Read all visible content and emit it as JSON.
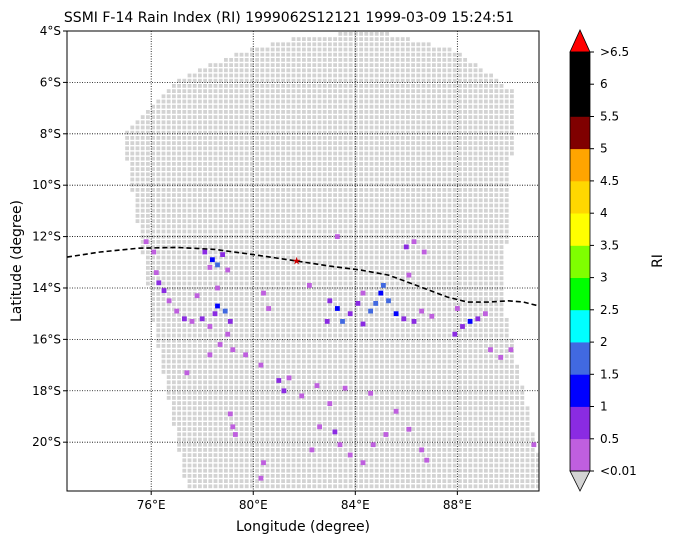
{
  "chart_data": {
    "type": "heatmap",
    "title": "SSMI F-14 Rain Index (RI) 1999062S12121 1999-03-09 15:24:51",
    "xlabel": "Longitude (degree)",
    "ylabel": "Latitude (degree)",
    "xlim": [
      72.7,
      91.2
    ],
    "ylim": [
      -21.9,
      -4.0
    ],
    "x_ticks": [
      {
        "value": 76,
        "label": "76°E"
      },
      {
        "value": 80,
        "label": "80°E"
      },
      {
        "value": 84,
        "label": "84°E"
      },
      {
        "value": 88,
        "label": "88°E"
      }
    ],
    "y_ticks": [
      {
        "value": -4,
        "label": "4°S"
      },
      {
        "value": -6,
        "label": "6°S"
      },
      {
        "value": -8,
        "label": "8°S"
      },
      {
        "value": -10,
        "label": "10°S"
      },
      {
        "value": -12,
        "label": "12°S"
      },
      {
        "value": -14,
        "label": "14°S"
      },
      {
        "value": -16,
        "label": "16°S"
      },
      {
        "value": -18,
        "label": "18°S"
      },
      {
        "value": -20,
        "label": "20°S"
      }
    ],
    "grid": true,
    "swath_outline": [
      [
        74.9,
        -8.0
      ],
      [
        77.0,
        -5.9
      ],
      [
        79.5,
        -4.8
      ],
      [
        82.0,
        -4.2
      ],
      [
        85.0,
        -4.0
      ],
      [
        88.0,
        -4.8
      ],
      [
        90.3,
        -6.4
      ],
      [
        89.8,
        -14.5
      ],
      [
        91.2,
        -20.6
      ],
      [
        91.2,
        -21.9
      ],
      [
        77.4,
        -21.9
      ],
      [
        76.2,
        -16.0
      ],
      [
        74.9,
        -8.0
      ]
    ],
    "no_rain_color": "#d3d3d3",
    "rain_cells": [
      [
        75.8,
        -12.2,
        0.3
      ],
      [
        76.1,
        -12.6,
        0.3
      ],
      [
        76.2,
        -13.4,
        0.3
      ],
      [
        76.3,
        -13.8,
        0.7
      ],
      [
        76.5,
        -14.1,
        0.7
      ],
      [
        76.7,
        -14.5,
        0.3
      ],
      [
        77.0,
        -14.9,
        0.3
      ],
      [
        77.3,
        -15.2,
        0.7
      ],
      [
        77.6,
        -15.3,
        0.3
      ],
      [
        78.0,
        -15.2,
        0.7
      ],
      [
        78.3,
        -15.5,
        0.3
      ],
      [
        78.5,
        -15.0,
        0.7
      ],
      [
        78.6,
        -14.7,
        1.2
      ],
      [
        78.9,
        -14.9,
        1.7
      ],
      [
        79.1,
        -15.3,
        0.7
      ],
      [
        79.0,
        -15.8,
        0.3
      ],
      [
        78.7,
        -16.2,
        0.3
      ],
      [
        78.3,
        -16.6,
        0.3
      ],
      [
        79.2,
        -16.4,
        0.3
      ],
      [
        78.1,
        -12.6,
        0.7
      ],
      [
        78.4,
        -12.9,
        1.2
      ],
      [
        78.6,
        -13.1,
        1.7
      ],
      [
        78.8,
        -12.7,
        0.7
      ],
      [
        78.3,
        -13.2,
        0.3
      ],
      [
        79.0,
        -13.3,
        0.3
      ],
      [
        77.8,
        -14.3,
        0.3
      ],
      [
        78.6,
        -14.0,
        0.3
      ],
      [
        80.4,
        -14.2,
        0.3
      ],
      [
        80.6,
        -14.8,
        0.3
      ],
      [
        79.7,
        -16.6,
        0.3
      ],
      [
        80.3,
        -17.0,
        0.3
      ],
      [
        81.0,
        -17.6,
        0.7
      ],
      [
        81.2,
        -18.0,
        0.7
      ],
      [
        81.4,
        -17.5,
        0.3
      ],
      [
        81.9,
        -18.2,
        0.3
      ],
      [
        82.5,
        -17.8,
        0.3
      ],
      [
        77.4,
        -17.3,
        0.3
      ],
      [
        82.2,
        -13.9,
        0.3
      ],
      [
        83.0,
        -14.5,
        0.7
      ],
      [
        83.3,
        -14.8,
        1.2
      ],
      [
        83.5,
        -15.3,
        1.7
      ],
      [
        83.8,
        -15.0,
        0.7
      ],
      [
        84.1,
        -14.6,
        0.7
      ],
      [
        84.3,
        -14.2,
        0.3
      ],
      [
        84.6,
        -14.9,
        1.7
      ],
      [
        84.8,
        -14.6,
        1.7
      ],
      [
        85.0,
        -14.2,
        1.2
      ],
      [
        85.1,
        -13.9,
        1.7
      ],
      [
        85.3,
        -14.5,
        1.7
      ],
      [
        85.6,
        -15.0,
        1.2
      ],
      [
        85.9,
        -15.2,
        0.7
      ],
      [
        86.3,
        -15.3,
        0.7
      ],
      [
        86.6,
        -14.9,
        0.3
      ],
      [
        87.0,
        -15.1,
        0.3
      ],
      [
        84.3,
        -15.4,
        0.7
      ],
      [
        82.9,
        -15.3,
        0.7
      ],
      [
        86.0,
        -12.4,
        0.7
      ],
      [
        86.3,
        -12.2,
        0.3
      ],
      [
        86.7,
        -12.6,
        0.3
      ],
      [
        86.1,
        -13.5,
        0.3
      ],
      [
        83.3,
        -12.0,
        0.3
      ],
      [
        87.9,
        -15.8,
        0.7
      ],
      [
        88.2,
        -15.5,
        0.7
      ],
      [
        88.5,
        -15.3,
        1.2
      ],
      [
        88.8,
        -15.2,
        0.7
      ],
      [
        89.1,
        -15.0,
        0.3
      ],
      [
        88.0,
        -14.8,
        0.3
      ],
      [
        89.3,
        -16.4,
        0.3
      ],
      [
        89.7,
        -16.7,
        0.3
      ],
      [
        90.1,
        -16.4,
        0.3
      ],
      [
        83.6,
        -17.9,
        0.3
      ],
      [
        84.6,
        -18.1,
        0.3
      ],
      [
        83.0,
        -18.5,
        0.3
      ],
      [
        82.6,
        -19.4,
        0.3
      ],
      [
        83.2,
        -19.6,
        0.7
      ],
      [
        83.4,
        -20.1,
        0.3
      ],
      [
        83.8,
        -20.5,
        0.3
      ],
      [
        84.3,
        -20.8,
        0.3
      ],
      [
        84.7,
        -20.1,
        0.3
      ],
      [
        82.3,
        -20.3,
        0.3
      ],
      [
        85.2,
        -19.7,
        0.3
      ],
      [
        85.6,
        -18.8,
        0.3
      ],
      [
        86.1,
        -19.5,
        0.3
      ],
      [
        79.1,
        -18.9,
        0.3
      ],
      [
        79.2,
        -19.4,
        0.3
      ],
      [
        79.3,
        -19.7,
        0.3
      ],
      [
        80.4,
        -20.8,
        0.3
      ],
      [
        80.3,
        -21.4,
        0.3
      ],
      [
        86.6,
        -20.3,
        0.3
      ],
      [
        86.8,
        -20.7,
        0.3
      ],
      [
        91.0,
        -20.1,
        0.3
      ]
    ],
    "track": [
      [
        72.7,
        -12.8
      ],
      [
        74.0,
        -12.6
      ],
      [
        75.5,
        -12.45
      ],
      [
        77.0,
        -12.42
      ],
      [
        78.5,
        -12.5
      ],
      [
        80.0,
        -12.7
      ],
      [
        81.7,
        -12.95
      ],
      [
        83.0,
        -13.15
      ],
      [
        84.2,
        -13.3
      ],
      [
        85.3,
        -13.5
      ],
      [
        86.0,
        -13.75
      ],
      [
        86.8,
        -14.05
      ],
      [
        87.6,
        -14.35
      ],
      [
        88.4,
        -14.55
      ],
      [
        89.2,
        -14.55
      ],
      [
        90.0,
        -14.5
      ],
      [
        90.6,
        -14.55
      ],
      [
        91.2,
        -14.7
      ]
    ],
    "storm_center": [
      81.7,
      -12.95
    ],
    "colorbar": {
      "label": "RI",
      "boundaries": [
        0.01,
        0.5,
        1,
        1.5,
        2,
        2.5,
        3,
        3.5,
        4,
        4.5,
        5,
        5.5,
        6,
        6.5
      ],
      "colors": [
        "#bf5fdf",
        "#8a2be2",
        "#0000ff",
        "#4169e1",
        "#00ffff",
        "#00ff00",
        "#7fff00",
        "#ffff00",
        "#ffd700",
        "#ffa500",
        "#800000",
        "#000000",
        "#000000"
      ],
      "tick_labels": [
        {
          "value": 0.01,
          "label": "<0.01"
        },
        {
          "value": 0.5,
          "label": "0.5"
        },
        {
          "value": 1,
          "label": "1"
        },
        {
          "value": 1.5,
          "label": "1.5"
        },
        {
          "value": 2,
          "label": "2"
        },
        {
          "value": 2.5,
          "label": "2.5"
        },
        {
          "value": 3,
          "label": "3"
        },
        {
          "value": 3.5,
          "label": "3.5"
        },
        {
          "value": 4,
          "label": "4"
        },
        {
          "value": 4.5,
          "label": "4.5"
        },
        {
          "value": 5,
          "label": "5"
        },
        {
          "value": 5.5,
          "label": "5.5"
        },
        {
          "value": 6,
          "label": "6"
        },
        {
          "value": 6.5,
          "label": ">6.5"
        }
      ],
      "over_color": "#ff0000",
      "under_color": "#d3d3d3"
    }
  }
}
